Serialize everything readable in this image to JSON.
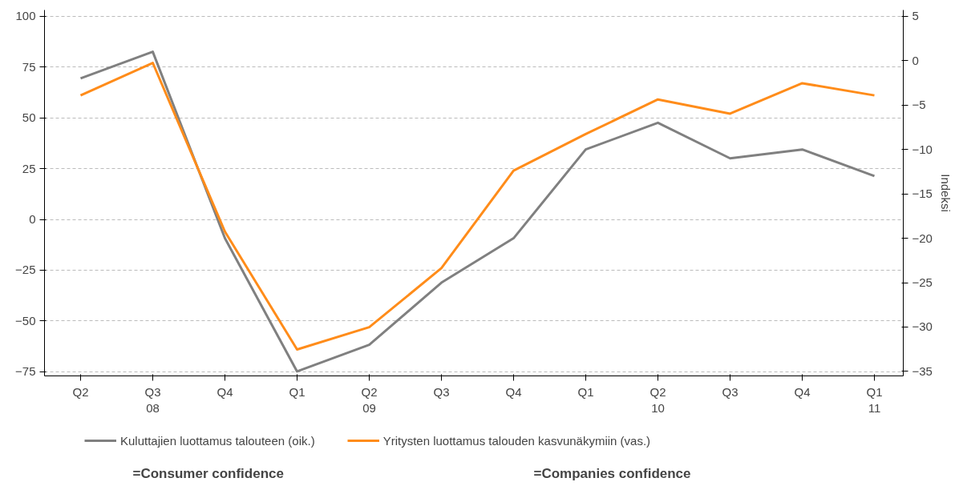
{
  "chart_data": {
    "type": "line",
    "categories": [
      "Q2",
      "Q3\n08",
      "Q4",
      "Q1",
      "Q2\n09",
      "Q3",
      "Q4",
      "Q1",
      "Q2\n10",
      "Q3",
      "Q4",
      "Q1\n11"
    ],
    "series": [
      {
        "name": "Kuluttajien luottamus talouteen (oik.)",
        "color": "#808080",
        "axis": "y2",
        "values": [
          -2,
          1,
          -20,
          -35,
          -32,
          -25,
          -20,
          -10,
          -7,
          -11,
          -10,
          -13
        ]
      },
      {
        "name": "Yritysten luottamus talouden kasvunäkymiin (vas.)",
        "color": "#ff8c1a",
        "values": [
          61,
          77,
          -6,
          -64,
          -53,
          -24,
          24,
          42,
          59,
          52,
          67,
          61
        ]
      }
    ],
    "ylim": [
      -77,
      103
    ],
    "yticks": [
      -75,
      -50,
      -25,
      0,
      25,
      50,
      75,
      100
    ],
    "y2lim": [
      -35.5,
      5.7
    ],
    "y2ticks": [
      -35,
      -30,
      -25,
      -20,
      -15,
      -10,
      -5,
      0,
      5
    ],
    "y2label": "Indeksi",
    "grid": "y",
    "legend": "bottom",
    "marker": "none",
    "line_style": "solid",
    "annotations": [
      "=Consumer confidence",
      "=Companies confidence"
    ]
  }
}
